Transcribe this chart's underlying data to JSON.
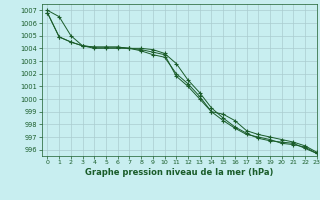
{
  "title": "Graphe pression niveau de la mer (hPa)",
  "background_color": "#c8eef0",
  "grid_color": "#aaccd0",
  "line_color": "#1a5c2a",
  "xlim": [
    -0.5,
    23
  ],
  "ylim": [
    995.5,
    1007.5
  ],
  "yticks": [
    996,
    997,
    998,
    999,
    1000,
    1001,
    1002,
    1003,
    1004,
    1005,
    1006,
    1007
  ],
  "xticks": [
    0,
    1,
    2,
    3,
    4,
    5,
    6,
    7,
    8,
    9,
    10,
    11,
    12,
    13,
    14,
    15,
    16,
    17,
    18,
    19,
    20,
    21,
    22,
    23
  ],
  "line1": [
    1007.0,
    1006.5,
    1005.0,
    1004.2,
    1004.0,
    1004.0,
    1004.0,
    1004.0,
    1003.8,
    1003.5,
    1003.3,
    1002.0,
    1001.2,
    1000.2,
    999.0,
    998.8,
    998.3,
    997.5,
    997.2,
    997.0,
    996.8,
    996.6,
    996.3,
    995.8
  ],
  "line2": [
    1006.8,
    1004.9,
    1004.5,
    1004.2,
    1004.1,
    1004.1,
    1004.1,
    1004.0,
    1003.9,
    1003.7,
    1003.5,
    1001.8,
    1001.0,
    1000.0,
    999.0,
    998.3,
    997.7,
    997.2,
    997.0,
    996.8,
    996.5,
    996.4,
    996.2,
    995.7
  ],
  "line3": [
    1006.8,
    1004.9,
    1004.5,
    1004.2,
    1004.1,
    1004.1,
    1004.1,
    1004.0,
    1004.0,
    1003.9,
    1003.6,
    1002.8,
    1001.5,
    1000.5,
    999.3,
    998.5,
    997.8,
    997.3,
    996.9,
    996.7,
    996.6,
    996.5,
    996.1,
    995.7
  ]
}
